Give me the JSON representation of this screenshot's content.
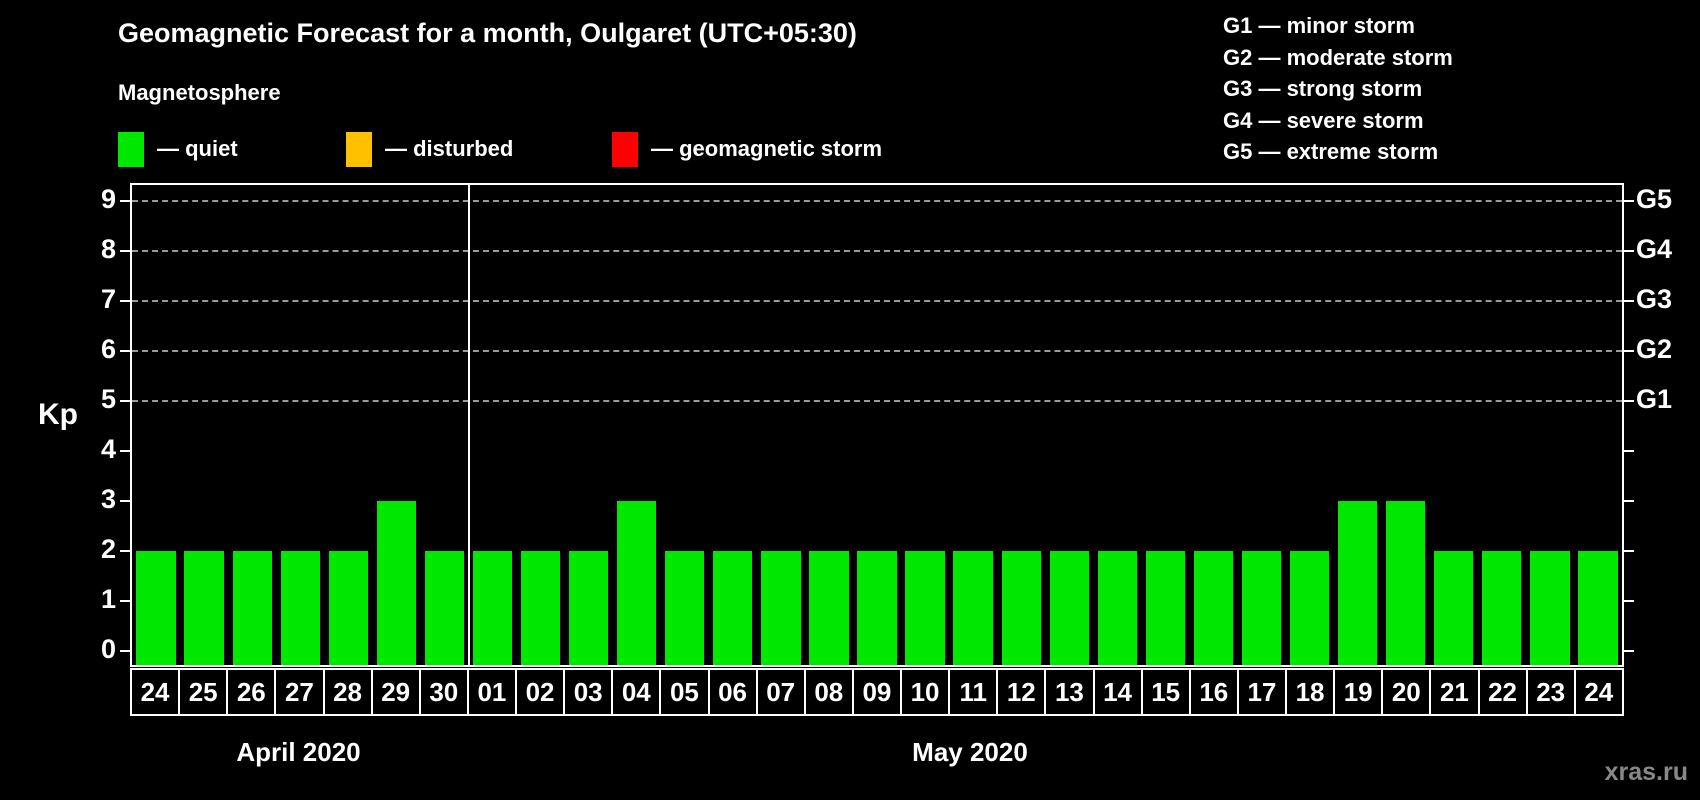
{
  "header": {
    "title": "Geomagnetic Forecast for a month, Oulgaret (UTC+05:30)",
    "subtitle": "Magnetosphere"
  },
  "legend": {
    "items": [
      {
        "label": "— quiet",
        "color": "#00E800",
        "meaning": "quiet"
      },
      {
        "label": "— disturbed",
        "color": "#FFC000",
        "meaning": "disturbed"
      },
      {
        "label": "— geomagnetic storm",
        "color": "#FF0000",
        "meaning": "geomagnetic storm"
      }
    ]
  },
  "g_legend": {
    "lines": [
      "G1 — minor storm",
      "G2 — moderate storm",
      "G3 — strong storm",
      "G4 — severe storm",
      "G5 — extreme storm"
    ]
  },
  "watermark": "xras.ru",
  "chart_data": {
    "type": "bar",
    "title": "Geomagnetic Forecast for a month, Oulgaret (UTC+05:30)",
    "ylabel": "Kp",
    "ylim": [
      0,
      9.35
    ],
    "yticks": [
      0,
      1,
      2,
      3,
      4,
      5,
      6,
      7,
      8,
      9
    ],
    "gridlines_at_kp": [
      5,
      6,
      7,
      8,
      9
    ],
    "grid_style": "dashed horizontal gray lines at Kp 5-9 only",
    "right_axis": [
      {
        "kp": 5,
        "label": "G1"
      },
      {
        "kp": 6,
        "label": "G2"
      },
      {
        "kp": 7,
        "label": "G3"
      },
      {
        "kp": 8,
        "label": "G4"
      },
      {
        "kp": 9,
        "label": "G5"
      }
    ],
    "months": [
      {
        "label": "April 2020",
        "days": 7
      },
      {
        "label": "May 2020",
        "days": 24
      }
    ],
    "categories": [
      "24",
      "25",
      "26",
      "27",
      "28",
      "29",
      "30",
      "01",
      "02",
      "03",
      "04",
      "05",
      "06",
      "07",
      "08",
      "09",
      "10",
      "11",
      "12",
      "13",
      "14",
      "15",
      "16",
      "17",
      "18",
      "19",
      "20",
      "21",
      "22",
      "23",
      "24"
    ],
    "values": [
      2,
      2,
      2,
      2,
      2,
      3,
      2,
      2,
      2,
      2,
      3,
      2,
      2,
      2,
      2,
      2,
      2,
      2,
      2,
      2,
      2,
      2,
      2,
      2,
      2,
      3,
      3,
      2,
      2,
      2,
      2
    ],
    "bar_color": "#00E800",
    "bar_status_all": "quiet",
    "legend_position": "top"
  }
}
